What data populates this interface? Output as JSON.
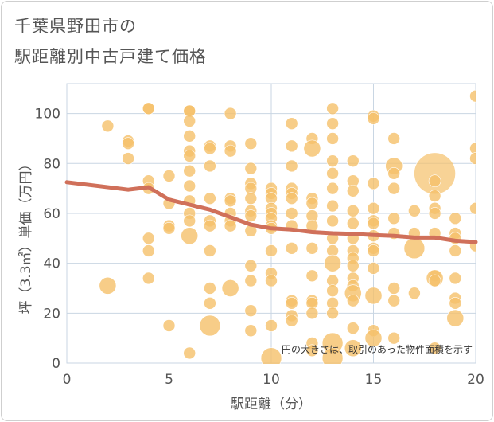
{
  "chart_data": {
    "type": "scatter",
    "title_line1": "千葉県野田市の",
    "title_line2": "駅距離別中古戸建て価格",
    "xlabel": "駅距離（分）",
    "ylabel": "坪（3.3㎡）単価（万円）",
    "xlim": [
      0,
      20
    ],
    "ylim": [
      0,
      112
    ],
    "xticks": [
      0,
      5,
      10,
      15,
      20
    ],
    "yticks": [
      0,
      20,
      40,
      60,
      80,
      100
    ],
    "note": "円の大きさは、取引のあった物件面積を示す",
    "colors": {
      "bubble": "#f5c06a",
      "trend": "#d0705a",
      "grid": "#c9d6e3"
    },
    "points": [
      {
        "x": 2,
        "y": 95,
        "s": 1
      },
      {
        "x": 2,
        "y": 31,
        "s": 2
      },
      {
        "x": 3,
        "y": 89,
        "s": 1
      },
      {
        "x": 3,
        "y": 88,
        "s": 1
      },
      {
        "x": 3,
        "y": 82,
        "s": 1
      },
      {
        "x": 4,
        "y": 102,
        "s": 1
      },
      {
        "x": 4,
        "y": 102,
        "s": 1
      },
      {
        "x": 4,
        "y": 73,
        "s": 1
      },
      {
        "x": 4,
        "y": 70,
        "s": 1
      },
      {
        "x": 4,
        "y": 50,
        "s": 1
      },
      {
        "x": 4,
        "y": 45,
        "s": 1
      },
      {
        "x": 4,
        "y": 34,
        "s": 1
      },
      {
        "x": 5,
        "y": 75,
        "s": 1
      },
      {
        "x": 5,
        "y": 64,
        "s": 1
      },
      {
        "x": 5,
        "y": 55,
        "s": 1
      },
      {
        "x": 5,
        "y": 54,
        "s": 1
      },
      {
        "x": 5,
        "y": 15,
        "s": 1
      },
      {
        "x": 6,
        "y": 101,
        "s": 1
      },
      {
        "x": 6,
        "y": 101,
        "s": 1
      },
      {
        "x": 6,
        "y": 97,
        "s": 1
      },
      {
        "x": 6,
        "y": 91,
        "s": 1
      },
      {
        "x": 6,
        "y": 85,
        "s": 1
      },
      {
        "x": 6,
        "y": 83,
        "s": 1
      },
      {
        "x": 6,
        "y": 77,
        "s": 1
      },
      {
        "x": 6,
        "y": 71,
        "s": 1
      },
      {
        "x": 6,
        "y": 65,
        "s": 1
      },
      {
        "x": 6,
        "y": 60,
        "s": 1
      },
      {
        "x": 6,
        "y": 57,
        "s": 1
      },
      {
        "x": 6,
        "y": 51,
        "s": 2
      },
      {
        "x": 6,
        "y": 4,
        "s": 1
      },
      {
        "x": 7,
        "y": 87,
        "s": 1
      },
      {
        "x": 7,
        "y": 86,
        "s": 1
      },
      {
        "x": 7,
        "y": 79,
        "s": 1
      },
      {
        "x": 7,
        "y": 66,
        "s": 1
      },
      {
        "x": 7,
        "y": 57,
        "s": 1
      },
      {
        "x": 7,
        "y": 55,
        "s": 1
      },
      {
        "x": 7,
        "y": 45,
        "s": 1
      },
      {
        "x": 7,
        "y": 30,
        "s": 1
      },
      {
        "x": 7,
        "y": 24,
        "s": 1
      },
      {
        "x": 7,
        "y": 15,
        "s": 3
      },
      {
        "x": 8,
        "y": 100,
        "s": 1
      },
      {
        "x": 8,
        "y": 87,
        "s": 1
      },
      {
        "x": 8,
        "y": 85,
        "s": 1
      },
      {
        "x": 8,
        "y": 66,
        "s": 1
      },
      {
        "x": 8,
        "y": 65,
        "s": 1
      },
      {
        "x": 8,
        "y": 60,
        "s": 1
      },
      {
        "x": 8,
        "y": 57,
        "s": 1
      },
      {
        "x": 8,
        "y": 55,
        "s": 1
      },
      {
        "x": 8,
        "y": 30,
        "s": 2
      },
      {
        "x": 9,
        "y": 88,
        "s": 1
      },
      {
        "x": 9,
        "y": 78,
        "s": 1
      },
      {
        "x": 9,
        "y": 72,
        "s": 1
      },
      {
        "x": 9,
        "y": 70,
        "s": 1
      },
      {
        "x": 9,
        "y": 66,
        "s": 1
      },
      {
        "x": 9,
        "y": 61,
        "s": 1
      },
      {
        "x": 9,
        "y": 59,
        "s": 1
      },
      {
        "x": 9,
        "y": 53,
        "s": 1
      },
      {
        "x": 9,
        "y": 39,
        "s": 1
      },
      {
        "x": 9,
        "y": 33,
        "s": 1
      },
      {
        "x": 9,
        "y": 21,
        "s": 1
      },
      {
        "x": 9,
        "y": 13,
        "s": 1
      },
      {
        "x": 10,
        "y": 70,
        "s": 1
      },
      {
        "x": 10,
        "y": 68,
        "s": 1
      },
      {
        "x": 10,
        "y": 66,
        "s": 1
      },
      {
        "x": 10,
        "y": 62,
        "s": 1
      },
      {
        "x": 10,
        "y": 60,
        "s": 1
      },
      {
        "x": 10,
        "y": 58,
        "s": 1
      },
      {
        "x": 10,
        "y": 55,
        "s": 1
      },
      {
        "x": 10,
        "y": 54,
        "s": 1
      },
      {
        "x": 10,
        "y": 45,
        "s": 1
      },
      {
        "x": 10,
        "y": 36,
        "s": 1
      },
      {
        "x": 10,
        "y": 33,
        "s": 1
      },
      {
        "x": 10,
        "y": 15,
        "s": 1
      },
      {
        "x": 10,
        "y": 2,
        "s": 3
      },
      {
        "x": 11,
        "y": 96,
        "s": 1
      },
      {
        "x": 11,
        "y": 87,
        "s": 1
      },
      {
        "x": 11,
        "y": 79,
        "s": 1
      },
      {
        "x": 11,
        "y": 70,
        "s": 1
      },
      {
        "x": 11,
        "y": 68,
        "s": 1
      },
      {
        "x": 11,
        "y": 66,
        "s": 1
      },
      {
        "x": 11,
        "y": 60,
        "s": 1
      },
      {
        "x": 11,
        "y": 55,
        "s": 1
      },
      {
        "x": 11,
        "y": 46,
        "s": 1
      },
      {
        "x": 11,
        "y": 25,
        "s": 1
      },
      {
        "x": 11,
        "y": 24,
        "s": 1
      },
      {
        "x": 11,
        "y": 19,
        "s": 1
      },
      {
        "x": 11,
        "y": 17,
        "s": 1
      },
      {
        "x": 12,
        "y": 90,
        "s": 1
      },
      {
        "x": 12,
        "y": 86,
        "s": 2
      },
      {
        "x": 12,
        "y": 66,
        "s": 1
      },
      {
        "x": 12,
        "y": 64,
        "s": 1
      },
      {
        "x": 12,
        "y": 59,
        "s": 1
      },
      {
        "x": 12,
        "y": 55,
        "s": 1
      },
      {
        "x": 12,
        "y": 46,
        "s": 1
      },
      {
        "x": 12,
        "y": 35,
        "s": 1
      },
      {
        "x": 12,
        "y": 25,
        "s": 1
      },
      {
        "x": 12,
        "y": 24,
        "s": 1
      },
      {
        "x": 12,
        "y": 20,
        "s": 1
      },
      {
        "x": 12,
        "y": 8,
        "s": 1
      },
      {
        "x": 12,
        "y": 5,
        "s": 1
      },
      {
        "x": 13,
        "y": 102,
        "s": 1
      },
      {
        "x": 13,
        "y": 96,
        "s": 1
      },
      {
        "x": 13,
        "y": 90,
        "s": 1
      },
      {
        "x": 13,
        "y": 81,
        "s": 1
      },
      {
        "x": 13,
        "y": 76,
        "s": 1
      },
      {
        "x": 13,
        "y": 70,
        "s": 1
      },
      {
        "x": 13,
        "y": 63,
        "s": 1
      },
      {
        "x": 13,
        "y": 57,
        "s": 1
      },
      {
        "x": 13,
        "y": 50,
        "s": 1
      },
      {
        "x": 13,
        "y": 45,
        "s": 1
      },
      {
        "x": 13,
        "y": 40,
        "s": 2
      },
      {
        "x": 13,
        "y": 33,
        "s": 1
      },
      {
        "x": 13,
        "y": 29,
        "s": 1
      },
      {
        "x": 13,
        "y": 24,
        "s": 1
      },
      {
        "x": 13,
        "y": 20,
        "s": 1
      },
      {
        "x": 13,
        "y": 8,
        "s": 3
      },
      {
        "x": 13,
        "y": 2,
        "s": 3
      },
      {
        "x": 14,
        "y": 81,
        "s": 1
      },
      {
        "x": 14,
        "y": 73,
        "s": 1
      },
      {
        "x": 14,
        "y": 69,
        "s": 1
      },
      {
        "x": 14,
        "y": 61,
        "s": 1
      },
      {
        "x": 14,
        "y": 56,
        "s": 1
      },
      {
        "x": 14,
        "y": 50,
        "s": 1
      },
      {
        "x": 14,
        "y": 45,
        "s": 1
      },
      {
        "x": 14,
        "y": 42,
        "s": 1
      },
      {
        "x": 14,
        "y": 39,
        "s": 1
      },
      {
        "x": 14,
        "y": 34,
        "s": 1
      },
      {
        "x": 14,
        "y": 31,
        "s": 1
      },
      {
        "x": 14,
        "y": 28,
        "s": 2
      },
      {
        "x": 14,
        "y": 25,
        "s": 1
      },
      {
        "x": 14,
        "y": 14,
        "s": 1
      },
      {
        "x": 14,
        "y": 6,
        "s": 2
      },
      {
        "x": 15,
        "y": 99,
        "s": 1
      },
      {
        "x": 15,
        "y": 98,
        "s": 1
      },
      {
        "x": 15,
        "y": 72,
        "s": 1
      },
      {
        "x": 15,
        "y": 62,
        "s": 1
      },
      {
        "x": 15,
        "y": 57,
        "s": 1
      },
      {
        "x": 15,
        "y": 56,
        "s": 1
      },
      {
        "x": 15,
        "y": 51,
        "s": 1
      },
      {
        "x": 15,
        "y": 46,
        "s": 1
      },
      {
        "x": 15,
        "y": 45,
        "s": 1
      },
      {
        "x": 15,
        "y": 38,
        "s": 1
      },
      {
        "x": 15,
        "y": 27,
        "s": 2
      },
      {
        "x": 15,
        "y": 13,
        "s": 1
      },
      {
        "x": 15,
        "y": 10,
        "s": 2
      },
      {
        "x": 16,
        "y": 90,
        "s": 1
      },
      {
        "x": 16,
        "y": 79,
        "s": 2
      },
      {
        "x": 16,
        "y": 76,
        "s": 1
      },
      {
        "x": 16,
        "y": 70,
        "s": 1
      },
      {
        "x": 16,
        "y": 58,
        "s": 1
      },
      {
        "x": 16,
        "y": 52,
        "s": 1
      },
      {
        "x": 16,
        "y": 30,
        "s": 1
      },
      {
        "x": 16,
        "y": 25,
        "s": 1
      },
      {
        "x": 16,
        "y": 10,
        "s": 1
      },
      {
        "x": 17,
        "y": 61,
        "s": 1
      },
      {
        "x": 17,
        "y": 52,
        "s": 1
      },
      {
        "x": 17,
        "y": 46,
        "s": 3
      },
      {
        "x": 17,
        "y": 28,
        "s": 1
      },
      {
        "x": 18,
        "y": 76,
        "s": 12
      },
      {
        "x": 18,
        "y": 73,
        "s": 1
      },
      {
        "x": 18,
        "y": 67,
        "s": 1
      },
      {
        "x": 18,
        "y": 62,
        "s": 1
      },
      {
        "x": 18,
        "y": 60,
        "s": 1
      },
      {
        "x": 18,
        "y": 52,
        "s": 1
      },
      {
        "x": 18,
        "y": 35,
        "s": 1
      },
      {
        "x": 18,
        "y": 34,
        "s": 2
      },
      {
        "x": 18,
        "y": 33,
        "s": 1
      },
      {
        "x": 18,
        "y": 6,
        "s": 1
      },
      {
        "x": 19,
        "y": 58,
        "s": 1
      },
      {
        "x": 19,
        "y": 52,
        "s": 1
      },
      {
        "x": 19,
        "y": 50,
        "s": 1
      },
      {
        "x": 19,
        "y": 45,
        "s": 1
      },
      {
        "x": 19,
        "y": 34,
        "s": 1
      },
      {
        "x": 19,
        "y": 26,
        "s": 1
      },
      {
        "x": 19,
        "y": 24,
        "s": 1
      },
      {
        "x": 19,
        "y": 18,
        "s": 2
      },
      {
        "x": 20,
        "y": 107,
        "s": 1
      },
      {
        "x": 20,
        "y": 86,
        "s": 1
      },
      {
        "x": 20,
        "y": 82,
        "s": 1
      },
      {
        "x": 20,
        "y": 62,
        "s": 1
      },
      {
        "x": 20,
        "y": 47,
        "s": 1
      }
    ],
    "trend": {
      "x": [
        0,
        3,
        4,
        5,
        6,
        7,
        8,
        9,
        10,
        11,
        12,
        13,
        14,
        15,
        16,
        17,
        18,
        19,
        20
      ],
      "y": [
        72.5,
        69.5,
        70.5,
        65.5,
        63.5,
        61.5,
        58.5,
        55.5,
        54.0,
        53.5,
        52.5,
        52.0,
        51.8,
        51.3,
        51.0,
        50.3,
        50.3,
        49.0,
        48.5
      ]
    }
  }
}
